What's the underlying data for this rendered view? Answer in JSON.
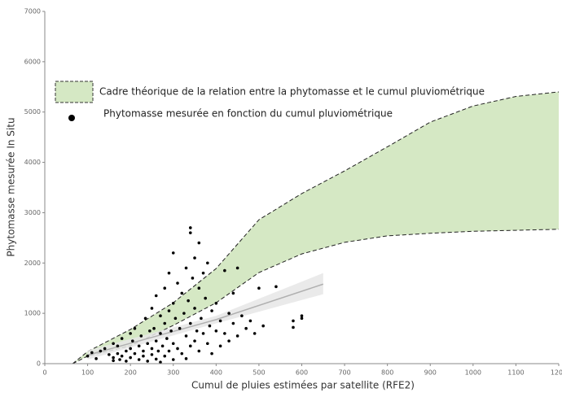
{
  "chart_data": {
    "type": "scatter",
    "xlabel": "Cumul de pluies estimées par satellite (RFE2)",
    "ylabel": "Phytomasse mesurée In Situ",
    "xlim": [
      0,
      1200
    ],
    "ylim": [
      0,
      7000
    ],
    "xticks": [
      0,
      100,
      200,
      300,
      400,
      500,
      600,
      700,
      800,
      900,
      1000,
      1100,
      1200
    ],
    "yticks": [
      0,
      1000,
      2000,
      3000,
      4000,
      5000,
      6000,
      7000
    ],
    "band": {
      "name": "Cadre théorique de la relation entre la phytomasse et le cumul pluviométrique",
      "color": "#d5e8c4",
      "x": [
        65,
        100,
        200,
        300,
        400,
        500,
        600,
        700,
        800,
        900,
        1000,
        1100,
        1200
      ],
      "upper": [
        0,
        240,
        680,
        1210,
        1890,
        2860,
        3380,
        3830,
        4310,
        4800,
        5120,
        5310,
        5400
      ],
      "lower": [
        0,
        150,
        355,
        760,
        1210,
        1810,
        2180,
        2410,
        2540,
        2590,
        2630,
        2650,
        2670
      ]
    },
    "trend": {
      "color": "#b0b0b0",
      "x": [
        100,
        400,
        650
      ],
      "values": [
        170,
        875,
        1580
      ],
      "ci_lower": [
        80,
        800,
        1380
      ],
      "ci_upper": [
        260,
        950,
        1800
      ]
    },
    "series": [
      {
        "name": "Phytomasse mesurée en fonction du cumul pluviométrique",
        "color": "#000000",
        "x": [
          100,
          110,
          120,
          130,
          140,
          150,
          160,
          160,
          160,
          170,
          170,
          175,
          180,
          180,
          190,
          190,
          200,
          200,
          200,
          205,
          210,
          210,
          220,
          220,
          225,
          230,
          230,
          235,
          240,
          240,
          245,
          250,
          250,
          250,
          255,
          260,
          260,
          260,
          265,
          270,
          270,
          270,
          275,
          280,
          280,
          280,
          285,
          290,
          290,
          290,
          295,
          300,
          300,
          300,
          300,
          305,
          310,
          310,
          315,
          320,
          320,
          325,
          330,
          330,
          330,
          335,
          340,
          340,
          340,
          340,
          345,
          350,
          350,
          350,
          355,
          360,
          360,
          360,
          365,
          370,
          370,
          375,
          380,
          380,
          385,
          390,
          390,
          400,
          400,
          410,
          410,
          420,
          420,
          430,
          430,
          440,
          440,
          450,
          450,
          460,
          470,
          480,
          490,
          500,
          510,
          540,
          580,
          580,
          600,
          600
        ],
        "values": [
          150,
          220,
          100,
          250,
          300,
          180,
          60,
          120,
          400,
          200,
          350,
          80,
          500,
          150,
          250,
          50,
          600,
          300,
          120,
          450,
          700,
          200,
          350,
          80,
          550,
          250,
          150,
          900,
          400,
          50,
          650,
          300,
          1100,
          180,
          700,
          1350,
          450,
          90,
          250,
          950,
          600,
          30,
          350,
          1500,
          800,
          150,
          500,
          1800,
          1050,
          250,
          650,
          2200,
          1200,
          400,
          80,
          900,
          1600,
          300,
          700,
          1400,
          200,
          1000,
          1900,
          550,
          100,
          1250,
          2700,
          2600,
          800,
          350,
          1700,
          2100,
          1100,
          450,
          650,
          2400,
          1500,
          250,
          900,
          1800,
          600,
          1300,
          2000,
          400,
          750,
          1050,
          200,
          1200,
          650,
          850,
          350,
          1850,
          600,
          1000,
          450,
          1400,
          800,
          1900,
          550,
          950,
          700,
          850,
          600,
          1500,
          750,
          1530,
          720,
          850,
          900,
          950
        ]
      }
    ]
  }
}
